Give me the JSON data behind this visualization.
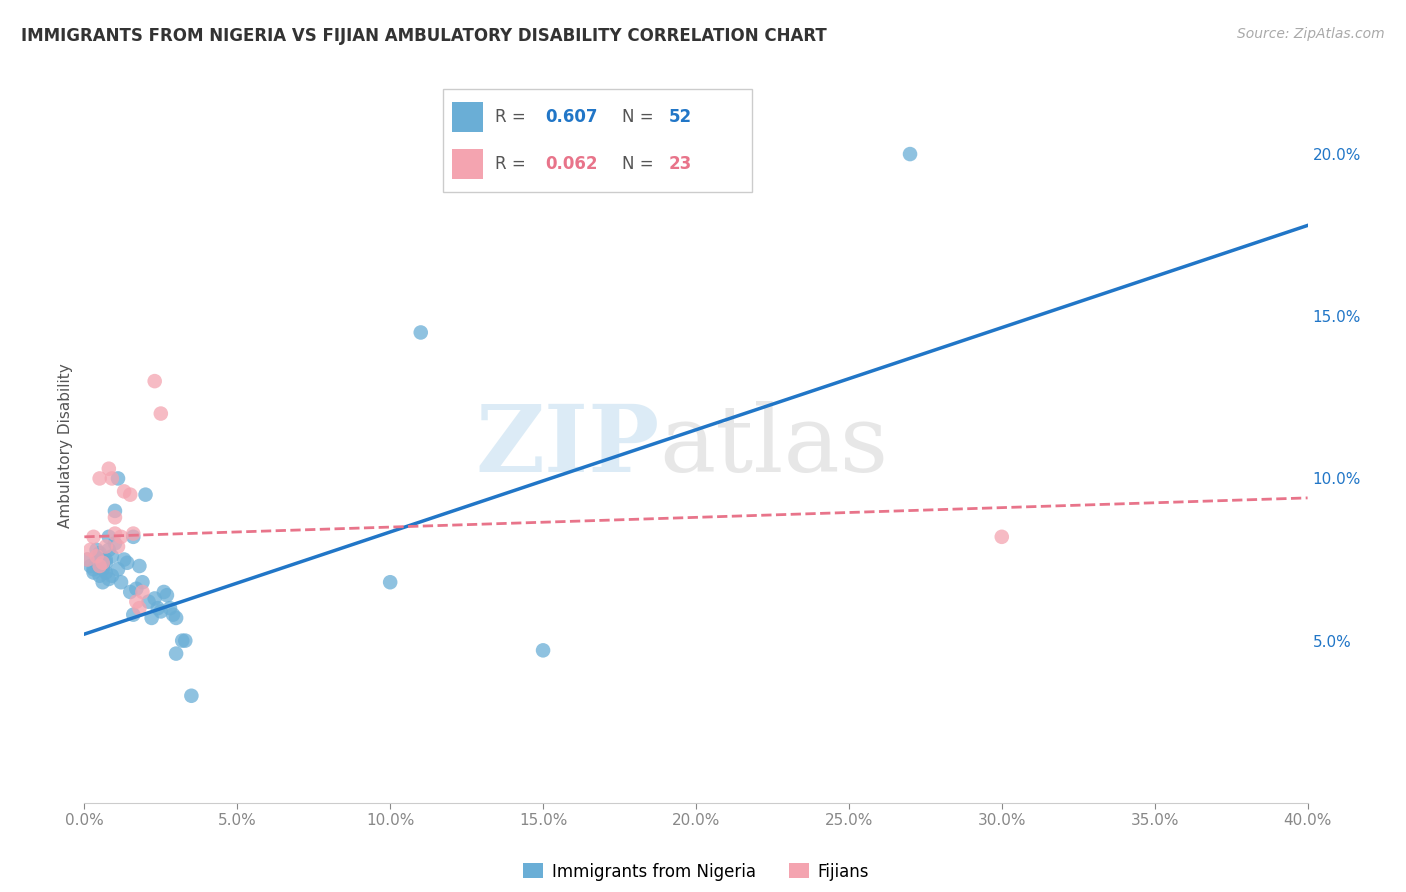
{
  "title": "IMMIGRANTS FROM NIGERIA VS FIJIAN AMBULATORY DISABILITY CORRELATION CHART",
  "source": "Source: ZipAtlas.com",
  "ylabel": "Ambulatory Disability",
  "xlim": [
    0.0,
    0.4
  ],
  "ylim": [
    0.0,
    0.22
  ],
  "xticks": [
    0.0,
    0.05,
    0.1,
    0.15,
    0.2,
    0.25,
    0.3,
    0.35,
    0.4
  ],
  "yticks_right": [
    0.05,
    0.1,
    0.15,
    0.2
  ],
  "blue_R": 0.607,
  "blue_N": 52,
  "pink_R": 0.062,
  "pink_N": 23,
  "blue_color": "#6aaed6",
  "pink_color": "#f4a4b0",
  "blue_line_color": "#2176c7",
  "pink_line_color": "#e8748a",
  "blue_scatter": [
    [
      0.001,
      0.075
    ],
    [
      0.002,
      0.073
    ],
    [
      0.003,
      0.072
    ],
    [
      0.003,
      0.071
    ],
    [
      0.004,
      0.078
    ],
    [
      0.004,
      0.074
    ],
    [
      0.005,
      0.077
    ],
    [
      0.005,
      0.07
    ],
    [
      0.005,
      0.076
    ],
    [
      0.006,
      0.073
    ],
    [
      0.006,
      0.068
    ],
    [
      0.006,
      0.072
    ],
    [
      0.007,
      0.074
    ],
    [
      0.007,
      0.071
    ],
    [
      0.007,
      0.075
    ],
    [
      0.008,
      0.069
    ],
    [
      0.008,
      0.078
    ],
    [
      0.008,
      0.082
    ],
    [
      0.009,
      0.076
    ],
    [
      0.009,
      0.07
    ],
    [
      0.01,
      0.08
    ],
    [
      0.01,
      0.09
    ],
    [
      0.011,
      0.072
    ],
    [
      0.011,
      0.1
    ],
    [
      0.012,
      0.068
    ],
    [
      0.013,
      0.075
    ],
    [
      0.014,
      0.074
    ],
    [
      0.015,
      0.065
    ],
    [
      0.016,
      0.082
    ],
    [
      0.016,
      0.058
    ],
    [
      0.017,
      0.066
    ],
    [
      0.018,
      0.073
    ],
    [
      0.019,
      0.068
    ],
    [
      0.02,
      0.095
    ],
    [
      0.021,
      0.062
    ],
    [
      0.022,
      0.057
    ],
    [
      0.023,
      0.063
    ],
    [
      0.024,
      0.06
    ],
    [
      0.025,
      0.059
    ],
    [
      0.026,
      0.065
    ],
    [
      0.027,
      0.064
    ],
    [
      0.028,
      0.06
    ],
    [
      0.029,
      0.058
    ],
    [
      0.03,
      0.057
    ],
    [
      0.03,
      0.046
    ],
    [
      0.032,
      0.05
    ],
    [
      0.033,
      0.05
    ],
    [
      0.1,
      0.068
    ],
    [
      0.11,
      0.145
    ],
    [
      0.15,
      0.047
    ],
    [
      0.27,
      0.2
    ],
    [
      0.035,
      0.033
    ]
  ],
  "pink_scatter": [
    [
      0.001,
      0.075
    ],
    [
      0.002,
      0.078
    ],
    [
      0.003,
      0.082
    ],
    [
      0.004,
      0.076
    ],
    [
      0.005,
      0.073
    ],
    [
      0.005,
      0.1
    ],
    [
      0.006,
      0.074
    ],
    [
      0.007,
      0.079
    ],
    [
      0.008,
      0.103
    ],
    [
      0.009,
      0.1
    ],
    [
      0.01,
      0.083
    ],
    [
      0.01,
      0.088
    ],
    [
      0.011,
      0.079
    ],
    [
      0.012,
      0.082
    ],
    [
      0.013,
      0.096
    ],
    [
      0.015,
      0.095
    ],
    [
      0.016,
      0.083
    ],
    [
      0.017,
      0.062
    ],
    [
      0.018,
      0.06
    ],
    [
      0.019,
      0.065
    ],
    [
      0.023,
      0.13
    ],
    [
      0.025,
      0.12
    ],
    [
      0.3,
      0.082
    ]
  ],
  "blue_trendline": [
    [
      0.0,
      0.052
    ],
    [
      0.4,
      0.178
    ]
  ],
  "pink_trendline": [
    [
      0.0,
      0.082
    ],
    [
      0.4,
      0.094
    ]
  ],
  "watermark_zip": "ZIP",
  "watermark_atlas": "atlas",
  "background_color": "#ffffff",
  "grid_color": "#dddddd",
  "legend_blue_R": "0.607",
  "legend_blue_N": "52",
  "legend_pink_R": "0.062",
  "legend_pink_N": "23",
  "legend_label_blue": "Immigrants from Nigeria",
  "legend_label_pink": "Fijians"
}
